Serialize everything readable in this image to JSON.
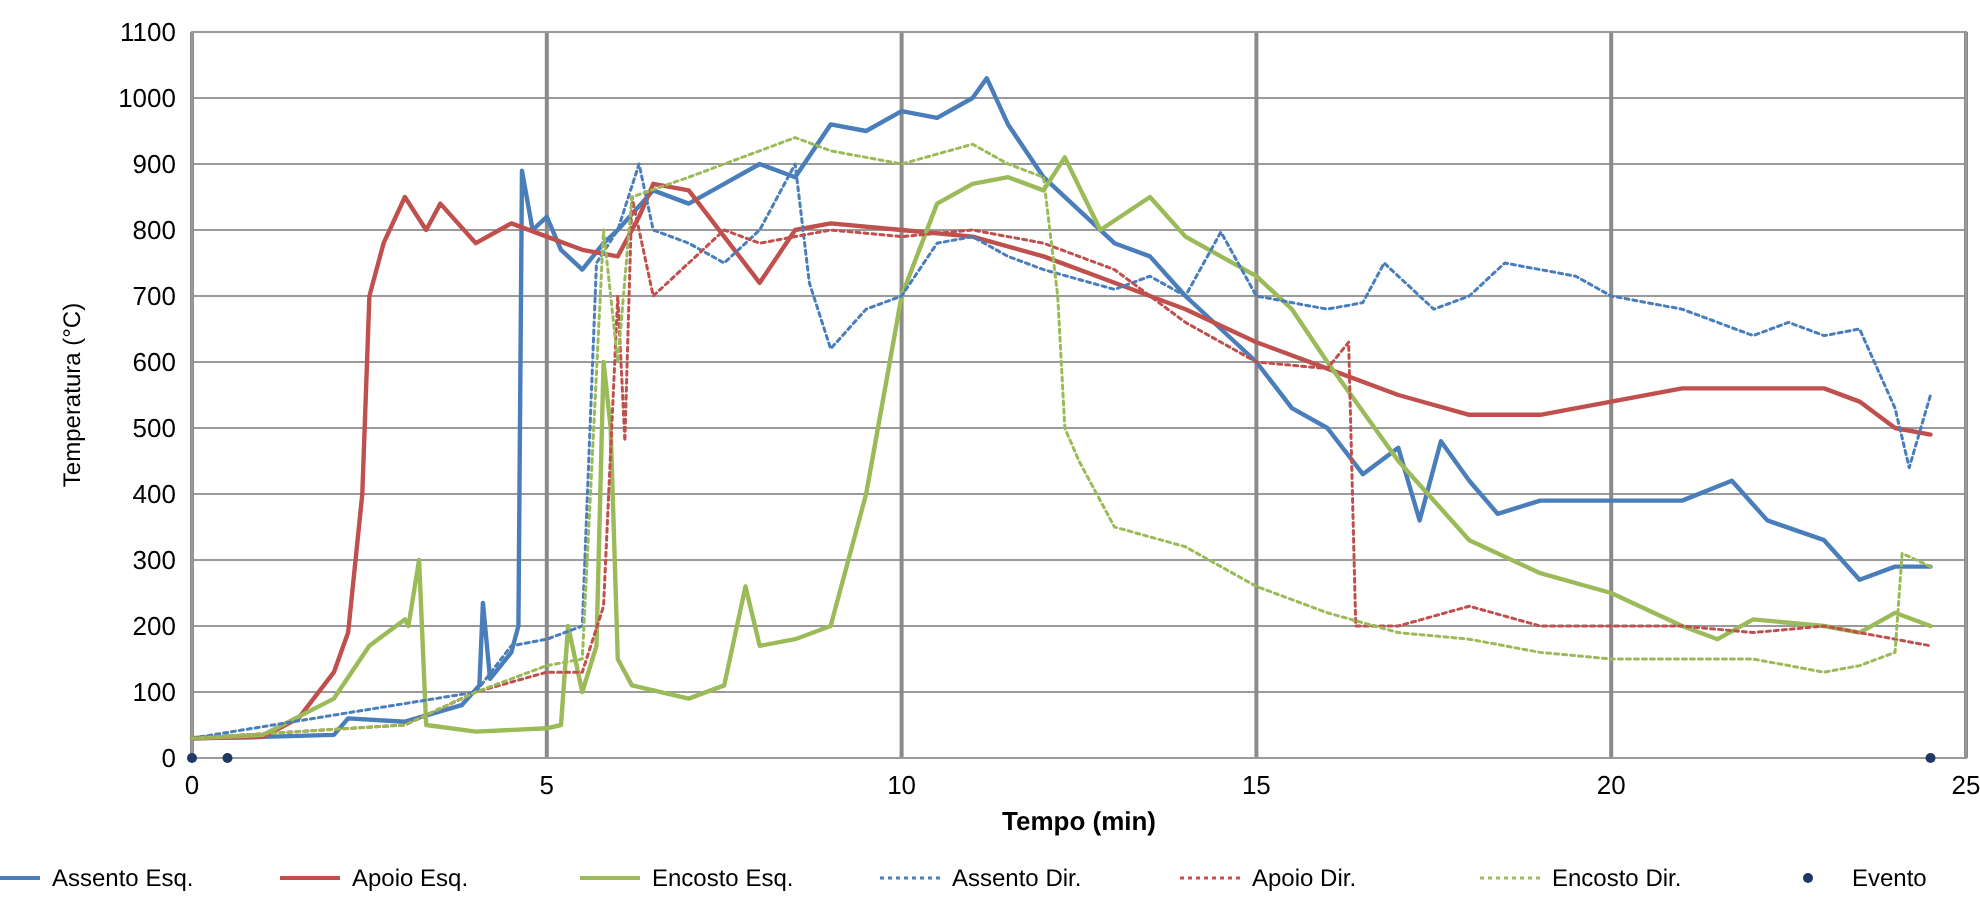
{
  "chart_data": {
    "type": "line",
    "xlabel": "Tempo (min)",
    "ylabel": "Temperatura (°C)",
    "xlim": [
      0,
      25
    ],
    "xticks": [
      0,
      5,
      10,
      15,
      20,
      25
    ],
    "ylim": [
      0,
      1100
    ],
    "yticks": [
      0,
      100,
      200,
      300,
      400,
      500,
      600,
      700,
      800,
      900,
      1000,
      1100
    ],
    "grid": true,
    "legend": "bottom",
    "series": [
      {
        "name": "Assento Esq.",
        "color": "#4a7ebb",
        "line_style": "solid",
        "x": [
          0,
          1,
          2,
          2.2,
          3,
          3.8,
          4.05,
          4.1,
          4.2,
          4.5,
          4.6,
          4.65,
          4.8,
          5,
          5.2,
          5.5,
          5.8,
          6,
          6.5,
          7,
          7.5,
          8,
          8.5,
          9,
          9.5,
          10,
          10.5,
          11,
          11.2,
          11.5,
          12,
          12.5,
          13,
          13.5,
          14,
          14.5,
          15,
          15.5,
          16,
          16.5,
          17,
          17.3,
          17.6,
          18,
          18.4,
          19,
          20,
          21,
          21.7,
          22.2,
          23,
          23.5,
          24,
          24.5
        ],
        "values": [
          30,
          32,
          35,
          60,
          55,
          80,
          110,
          235,
          120,
          160,
          200,
          890,
          800,
          820,
          770,
          740,
          780,
          800,
          860,
          840,
          870,
          900,
          880,
          960,
          950,
          980,
          970,
          1000,
          1030,
          960,
          880,
          830,
          780,
          760,
          700,
          650,
          600,
          530,
          500,
          430,
          470,
          360,
          480,
          420,
          370,
          390,
          390,
          390,
          420,
          360,
          330,
          270,
          290,
          290
        ]
      },
      {
        "name": "Apoio Esq.",
        "color": "#c0504d",
        "line_style": "solid",
        "x": [
          0,
          1,
          1.5,
          2,
          2.2,
          2.4,
          2.5,
          2.7,
          3,
          3.3,
          3.5,
          4,
          4.5,
          5,
          5.5,
          6,
          6.3,
          6.5,
          7,
          7.5,
          8,
          8.5,
          9,
          10,
          11,
          12,
          13,
          14,
          15,
          16,
          17,
          18,
          19,
          20,
          21,
          22,
          23,
          23.5,
          24,
          24.5
        ],
        "values": [
          30,
          32,
          60,
          130,
          190,
          400,
          700,
          780,
          850,
          800,
          840,
          780,
          810,
          790,
          770,
          760,
          820,
          870,
          860,
          790,
          720,
          800,
          810,
          800,
          790,
          760,
          720,
          680,
          630,
          590,
          550,
          520,
          520,
          540,
          560,
          560,
          560,
          540,
          500,
          490
        ]
      },
      {
        "name": "Encosto Esq.",
        "color": "#9bbb59",
        "line_style": "solid",
        "x": [
          0,
          1,
          2,
          2.5,
          3,
          3.05,
          3.2,
          3.3,
          4,
          5,
          5.2,
          5.3,
          5.5,
          5.7,
          5.8,
          5.9,
          6,
          6.2,
          7,
          7.5,
          7.8,
          8,
          8.5,
          9,
          9.5,
          10,
          10.5,
          11,
          11.5,
          12,
          12.3,
          12.8,
          13.5,
          14,
          15,
          15.5,
          16,
          17,
          18,
          19,
          20,
          21,
          21.5,
          22,
          23,
          23.5,
          24,
          24.5
        ],
        "values": [
          30,
          35,
          90,
          170,
          210,
          200,
          300,
          50,
          40,
          45,
          50,
          200,
          100,
          170,
          600,
          500,
          150,
          110,
          90,
          110,
          260,
          170,
          180,
          200,
          400,
          700,
          840,
          870,
          880,
          860,
          910,
          800,
          850,
          790,
          730,
          680,
          600,
          450,
          330,
          280,
          250,
          200,
          180,
          210,
          200,
          190,
          220,
          200
        ]
      },
      {
        "name": "Assento Dir.",
        "color": "#4a7ebb",
        "line_style": "dotted",
        "x": [
          0,
          4,
          4.5,
          5,
          5.5,
          5.7,
          6,
          6.3,
          6.5,
          7,
          7.5,
          8,
          8.5,
          8.7,
          9,
          9.5,
          10,
          10.5,
          11,
          11.5,
          12,
          13,
          13.5,
          14,
          14.5,
          15,
          16,
          16.5,
          16.8,
          17.5,
          18,
          18.5,
          19,
          19.5,
          20,
          21,
          22,
          22.5,
          23,
          23.5,
          24,
          24.2,
          24.5
        ],
        "values": [
          30,
          100,
          170,
          180,
          200,
          750,
          800,
          900,
          800,
          780,
          750,
          800,
          900,
          720,
          620,
          680,
          700,
          780,
          790,
          760,
          740,
          710,
          730,
          700,
          797,
          700,
          680,
          690,
          750,
          680,
          700,
          750,
          740,
          730,
          700,
          680,
          640,
          660,
          640,
          650,
          530,
          440,
          550
        ]
      },
      {
        "name": "Apoio Dir.",
        "color": "#c0504d",
        "line_style": "dotted",
        "x": [
          0,
          3,
          4,
          5,
          5.5,
          5.8,
          6,
          6.1,
          6.2,
          6.5,
          7,
          7.5,
          8,
          9,
          10,
          11,
          12,
          13,
          14,
          15,
          16,
          16.3,
          16.4,
          17,
          18,
          19,
          20,
          21,
          22,
          23,
          24,
          24.5
        ],
        "values": [
          30,
          50,
          100,
          130,
          130,
          230,
          700,
          480,
          850,
          700,
          750,
          800,
          780,
          800,
          790,
          800,
          780,
          740,
          660,
          600,
          590,
          630,
          200,
          200,
          230,
          200,
          200,
          200,
          190,
          200,
          180,
          170
        ]
      },
      {
        "name": "Encosto Dir.",
        "color": "#9bbb59",
        "line_style": "dotted",
        "x": [
          0,
          3,
          4,
          5,
          5.5,
          5.8,
          6,
          6.2,
          7,
          8,
          8.5,
          9,
          10,
          11,
          11.5,
          12,
          12.2,
          12.3,
          12.5,
          13,
          14,
          15,
          16,
          17,
          18,
          19,
          20,
          21,
          22,
          23,
          23.5,
          24,
          24.1,
          24.5
        ],
        "values": [
          30,
          50,
          100,
          140,
          150,
          800,
          600,
          850,
          880,
          920,
          940,
          920,
          900,
          930,
          900,
          880,
          700,
          500,
          450,
          350,
          320,
          260,
          220,
          190,
          180,
          160,
          150,
          150,
          150,
          130,
          140,
          160,
          310,
          290
        ]
      },
      {
        "name": "Evento",
        "type": "scatter",
        "marker": "circle",
        "color": "#1f3864",
        "x": [
          0,
          0.5,
          24.5
        ],
        "values": [
          0,
          0,
          0
        ]
      }
    ]
  }
}
